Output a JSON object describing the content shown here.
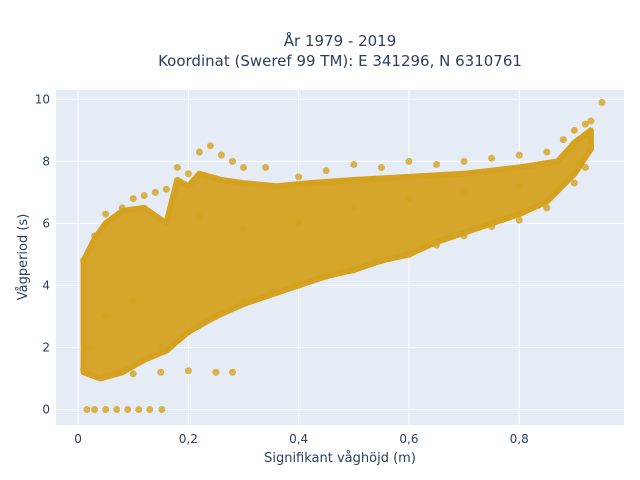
{
  "chart_data": {
    "type": "scatter",
    "title_lines": [
      "År 1979 - 2019",
      "Koordinat (Sweref 99 TM): E 341296, N 6310761"
    ],
    "xlabel": "Signifikant våghöjd (m)",
    "ylabel": "Vågperiod (s)",
    "xlim": [
      -0.04,
      0.99
    ],
    "ylim": [
      -0.5,
      10.3
    ],
    "x_ticks": [
      0,
      0.2,
      0.4,
      0.6,
      0.8
    ],
    "x_tick_labels": [
      "0",
      "0,2",
      "0,4",
      "0,6",
      "0,8"
    ],
    "y_ticks": [
      0,
      2,
      4,
      6,
      8,
      10
    ],
    "y_tick_labels": [
      "0",
      "2",
      "4",
      "6",
      "8",
      "10"
    ],
    "grid": true,
    "colors": {
      "background": "#E5ECF6",
      "grid": "#FFFFFF",
      "marker": "#D4A220"
    },
    "series": [
      {
        "points": [
          [
            0.016,
            0.0
          ],
          [
            0.03,
            0.0
          ],
          [
            0.05,
            0.0
          ],
          [
            0.07,
            0.0
          ],
          [
            0.09,
            0.0
          ],
          [
            0.11,
            0.0
          ],
          [
            0.13,
            0.0
          ],
          [
            0.152,
            0.0
          ],
          [
            0.01,
            1.3
          ],
          [
            0.05,
            1.1
          ],
          [
            0.1,
            1.15
          ],
          [
            0.15,
            1.2
          ],
          [
            0.2,
            1.25
          ],
          [
            0.25,
            1.2
          ],
          [
            0.28,
            1.2
          ],
          [
            0.01,
            4.8
          ],
          [
            0.03,
            5.6
          ],
          [
            0.05,
            6.3
          ],
          [
            0.08,
            6.5
          ],
          [
            0.1,
            6.8
          ],
          [
            0.12,
            6.9
          ],
          [
            0.14,
            7.0
          ],
          [
            0.16,
            7.1
          ],
          [
            0.18,
            7.8
          ],
          [
            0.2,
            7.6
          ],
          [
            0.22,
            8.3
          ],
          [
            0.24,
            8.5
          ],
          [
            0.26,
            8.2
          ],
          [
            0.28,
            8.0
          ],
          [
            0.3,
            7.8
          ],
          [
            0.34,
            7.8
          ],
          [
            0.4,
            7.5
          ],
          [
            0.45,
            7.7
          ],
          [
            0.5,
            7.9
          ],
          [
            0.55,
            7.8
          ],
          [
            0.6,
            8.0
          ],
          [
            0.65,
            7.9
          ],
          [
            0.7,
            8.0
          ],
          [
            0.75,
            8.1
          ],
          [
            0.8,
            8.2
          ],
          [
            0.85,
            8.3
          ],
          [
            0.88,
            8.7
          ],
          [
            0.9,
            9.0
          ],
          [
            0.92,
            9.2
          ],
          [
            0.93,
            9.3
          ],
          [
            0.95,
            9.9
          ],
          [
            0.02,
            2.0
          ],
          [
            0.05,
            3.0
          ],
          [
            0.1,
            3.5
          ],
          [
            0.15,
            2.0
          ],
          [
            0.2,
            2.5
          ],
          [
            0.25,
            3.0
          ],
          [
            0.3,
            3.5
          ],
          [
            0.35,
            3.8
          ],
          [
            0.4,
            4.0
          ],
          [
            0.45,
            4.3
          ],
          [
            0.5,
            4.5
          ],
          [
            0.55,
            4.8
          ],
          [
            0.6,
            5.0
          ],
          [
            0.65,
            5.3
          ],
          [
            0.7,
            5.6
          ],
          [
            0.75,
            5.9
          ],
          [
            0.8,
            6.1
          ],
          [
            0.85,
            6.5
          ],
          [
            0.9,
            7.3
          ],
          [
            0.92,
            7.8
          ],
          [
            0.22,
            6.2
          ],
          [
            0.3,
            5.8
          ],
          [
            0.4,
            6.0
          ],
          [
            0.5,
            6.5
          ],
          [
            0.6,
            6.8
          ],
          [
            0.7,
            7.0
          ],
          [
            0.8,
            7.2
          ]
        ]
      }
    ],
    "band": {
      "upper": [
        [
          0.01,
          4.8
        ],
        [
          0.03,
          5.5
        ],
        [
          0.05,
          6.0
        ],
        [
          0.08,
          6.4
        ],
        [
          0.12,
          6.5
        ],
        [
          0.16,
          6.0
        ],
        [
          0.18,
          7.4
        ],
        [
          0.2,
          7.2
        ],
        [
          0.22,
          7.6
        ],
        [
          0.26,
          7.4
        ],
        [
          0.3,
          7.3
        ],
        [
          0.36,
          7.2
        ],
        [
          0.42,
          7.3
        ],
        [
          0.5,
          7.4
        ],
        [
          0.6,
          7.5
        ],
        [
          0.7,
          7.6
        ],
        [
          0.8,
          7.8
        ],
        [
          0.87,
          8.0
        ],
        [
          0.9,
          8.6
        ],
        [
          0.93,
          9.0
        ]
      ],
      "lower": [
        [
          0.93,
          8.4
        ],
        [
          0.9,
          7.6
        ],
        [
          0.85,
          6.7
        ],
        [
          0.8,
          6.3
        ],
        [
          0.75,
          6.0
        ],
        [
          0.7,
          5.7
        ],
        [
          0.65,
          5.4
        ],
        [
          0.6,
          5.0
        ],
        [
          0.55,
          4.8
        ],
        [
          0.5,
          4.5
        ],
        [
          0.45,
          4.3
        ],
        [
          0.4,
          4.0
        ],
        [
          0.35,
          3.7
        ],
        [
          0.3,
          3.4
        ],
        [
          0.25,
          3.0
        ],
        [
          0.2,
          2.5
        ],
        [
          0.16,
          1.9
        ],
        [
          0.12,
          1.6
        ],
        [
          0.08,
          1.2
        ],
        [
          0.04,
          1.0
        ],
        [
          0.01,
          1.2
        ]
      ]
    }
  }
}
